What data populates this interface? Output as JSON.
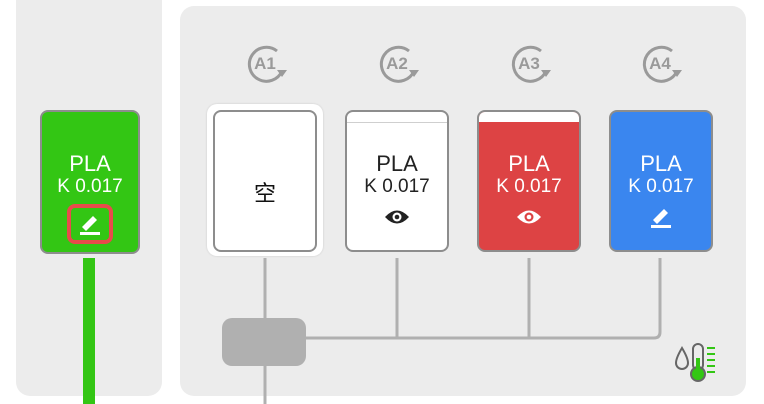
{
  "external_spool": {
    "material": "PLA",
    "k_value": "K 0.017",
    "color": "#33c614"
  },
  "ams_units": [
    {
      "label": "A1",
      "material": "",
      "k_value": "",
      "empty_label": "空",
      "color": "#ffffff",
      "state": "empty"
    },
    {
      "label": "A2",
      "material": "PLA",
      "k_value": "K 0.017",
      "color": "#ffffff",
      "state": "view"
    },
    {
      "label": "A3",
      "material": "PLA",
      "k_value": "K 0.017",
      "color": "#dd4344",
      "state": "view"
    },
    {
      "label": "A4",
      "material": "PLA",
      "k_value": "K 0.017",
      "color": "#3a86ef",
      "state": "edit"
    }
  ],
  "colors": {
    "feed_line": "#33c614",
    "selected_outline": "#e84b4b",
    "connector": "#b0b0b0"
  },
  "icons": {
    "edit": "pencil-edit-icon",
    "view": "eye-icon",
    "rotate": "rotate-icon",
    "humidity": "humidity-thermometer-icon"
  }
}
